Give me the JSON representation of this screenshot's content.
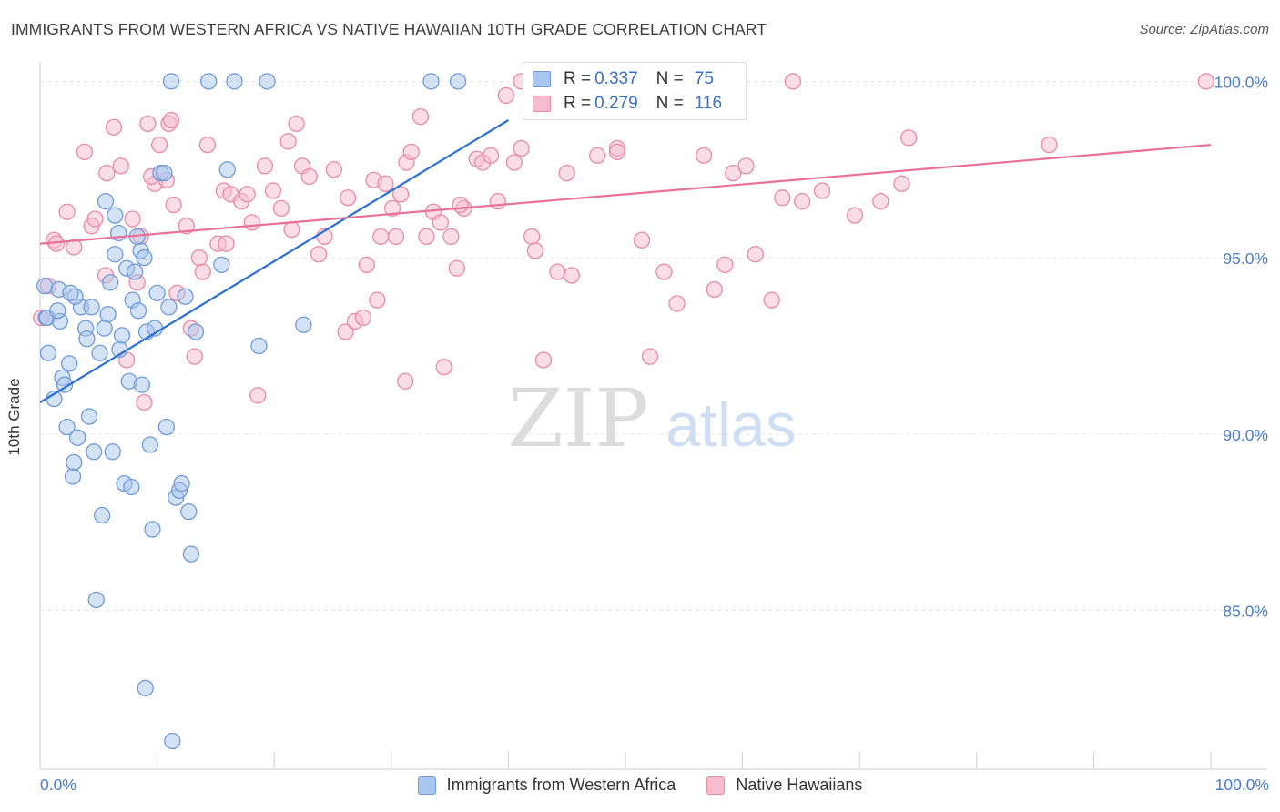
{
  "header": {
    "title": "IMMIGRANTS FROM WESTERN AFRICA VS NATIVE HAWAIIAN 10TH GRADE CORRELATION CHART",
    "source": "Source: ZipAtlas.com"
  },
  "watermark": {
    "zip": "ZIP",
    "atlas": "atlas"
  },
  "colors": {
    "blue_fill": "#a9c6ee",
    "blue_stroke": "#6f9bd9",
    "blue_line": "#2a6fd1",
    "pink_fill": "#f5bccd",
    "pink_stroke": "#e98aa6",
    "pink_line": "#e8709a",
    "value_text": "#3a6fc4"
  },
  "stats_legend": {
    "rows": [
      {
        "r_label": "R =",
        "r_value": "0.337",
        "n_label": "N =",
        "n_value": "75"
      },
      {
        "r_label": "R =",
        "r_value": "0.279",
        "n_label": "N =",
        "n_value": "116"
      }
    ]
  },
  "chart_data": {
    "type": "scatter",
    "title": "IMMIGRANTS FROM WESTERN AFRICA VS NATIVE HAWAIIAN 10TH GRADE CORRELATION CHART",
    "xlabel": "",
    "ylabel": "10th Grade",
    "xlim": [
      0,
      100
    ],
    "ylim": [
      80.5,
      100.5
    ],
    "x_tick_labels": [
      "0.0%",
      "100.0%"
    ],
    "y_ticks": [
      85,
      90,
      95,
      100
    ],
    "y_tick_labels": [
      "85.0%",
      "90.0%",
      "95.0%",
      "100.0%"
    ],
    "grid": true,
    "legend_position": "bottom-center",
    "series": [
      {
        "name": "Immigrants from Western Africa",
        "color": "blue",
        "R": 0.337,
        "N": 75,
        "trend": {
          "x": [
            0,
            40
          ],
          "y": [
            90.9,
            98.9
          ]
        },
        "points": [
          [
            11.2,
            100
          ],
          [
            14.4,
            100
          ],
          [
            16.6,
            100
          ],
          [
            19.4,
            100
          ],
          [
            33.4,
            100
          ],
          [
            35.7,
            100
          ],
          [
            0.4,
            94.2
          ],
          [
            0.5,
            93.3
          ],
          [
            0.6,
            93.3
          ],
          [
            0.7,
            92.3
          ],
          [
            1.2,
            91.0
          ],
          [
            1.6,
            94.1
          ],
          [
            1.7,
            93.2
          ],
          [
            1.9,
            91.6
          ],
          [
            2.1,
            91.4
          ],
          [
            2.3,
            90.2
          ],
          [
            2.5,
            92.0
          ],
          [
            2.8,
            88.8
          ],
          [
            2.9,
            89.2
          ],
          [
            3.2,
            89.9
          ],
          [
            3.5,
            93.6
          ],
          [
            3.9,
            93.0
          ],
          [
            4.2,
            90.5
          ],
          [
            4.4,
            93.6
          ],
          [
            4.6,
            89.5
          ],
          [
            5.1,
            92.3
          ],
          [
            5.3,
            87.7
          ],
          [
            5.5,
            93.0
          ],
          [
            5.8,
            93.4
          ],
          [
            6.0,
            94.3
          ],
          [
            6.2,
            89.5
          ],
          [
            6.4,
            95.1
          ],
          [
            6.7,
            95.7
          ],
          [
            6.8,
            92.4
          ],
          [
            7.0,
            92.8
          ],
          [
            7.2,
            88.6
          ],
          [
            7.4,
            94.7
          ],
          [
            7.6,
            91.5
          ],
          [
            7.8,
            88.5
          ],
          [
            7.9,
            93.8
          ],
          [
            8.1,
            94.6
          ],
          [
            8.4,
            93.5
          ],
          [
            8.6,
            95.2
          ],
          [
            8.7,
            91.4
          ],
          [
            8.9,
            95.0
          ],
          [
            9.1,
            92.9
          ],
          [
            9.4,
            89.7
          ],
          [
            9.6,
            87.3
          ],
          [
            9.8,
            93.0
          ],
          [
            10.0,
            94.0
          ],
          [
            10.3,
            97.4
          ],
          [
            10.8,
            90.2
          ],
          [
            11.0,
            93.6
          ],
          [
            11.6,
            88.2
          ],
          [
            11.9,
            88.4
          ],
          [
            12.1,
            88.6
          ],
          [
            12.7,
            87.8
          ],
          [
            12.9,
            86.6
          ],
          [
            13.3,
            92.9
          ],
          [
            16.0,
            97.5
          ],
          [
            18.7,
            92.5
          ],
          [
            22.5,
            93.1
          ],
          [
            4.8,
            85.3
          ],
          [
            9.0,
            82.8
          ],
          [
            11.3,
            81.3
          ],
          [
            6.4,
            96.2
          ],
          [
            10.6,
            97.4
          ],
          [
            3.0,
            93.9
          ],
          [
            1.5,
            93.5
          ],
          [
            2.6,
            94.0
          ],
          [
            4.0,
            92.7
          ],
          [
            5.6,
            96.6
          ],
          [
            8.3,
            95.6
          ],
          [
            12.4,
            93.9
          ],
          [
            15.5,
            94.8
          ]
        ]
      },
      {
        "name": "Native Hawaiians",
        "color": "pink",
        "R": 0.279,
        "N": 116,
        "trend": {
          "x": [
            0,
            100
          ],
          "y": [
            95.4,
            98.2
          ]
        },
        "points": [
          [
            0.1,
            93.3
          ],
          [
            0.7,
            94.2
          ],
          [
            1.2,
            95.5
          ],
          [
            1.4,
            95.4
          ],
          [
            2.3,
            96.3
          ],
          [
            2.9,
            95.3
          ],
          [
            3.8,
            98.0
          ],
          [
            4.4,
            95.9
          ],
          [
            4.7,
            96.1
          ],
          [
            5.6,
            94.5
          ],
          [
            5.7,
            97.4
          ],
          [
            6.9,
            97.6
          ],
          [
            7.4,
            92.1
          ],
          [
            8.3,
            94.3
          ],
          [
            8.6,
            95.6
          ],
          [
            8.9,
            90.9
          ],
          [
            9.2,
            98.8
          ],
          [
            9.8,
            97.1
          ],
          [
            10.2,
            98.2
          ],
          [
            10.8,
            97.2
          ],
          [
            11.0,
            98.8
          ],
          [
            11.2,
            98.9
          ],
          [
            11.7,
            94.0
          ],
          [
            12.5,
            95.9
          ],
          [
            12.9,
            93.0
          ],
          [
            13.2,
            92.2
          ],
          [
            13.9,
            94.6
          ],
          [
            14.3,
            98.2
          ],
          [
            15.2,
            95.4
          ],
          [
            15.7,
            96.9
          ],
          [
            16.3,
            96.8
          ],
          [
            17.2,
            96.6
          ],
          [
            17.7,
            96.8
          ],
          [
            18.6,
            91.1
          ],
          [
            19.2,
            97.6
          ],
          [
            19.9,
            96.9
          ],
          [
            20.6,
            96.4
          ],
          [
            21.2,
            98.3
          ],
          [
            21.9,
            98.8
          ],
          [
            22.4,
            97.6
          ],
          [
            23.0,
            97.3
          ],
          [
            23.8,
            95.1
          ],
          [
            24.3,
            95.6
          ],
          [
            25.1,
            97.5
          ],
          [
            26.1,
            92.9
          ],
          [
            26.3,
            96.7
          ],
          [
            26.9,
            93.2
          ],
          [
            27.6,
            93.3
          ],
          [
            27.9,
            94.8
          ],
          [
            28.5,
            97.2
          ],
          [
            29.1,
            95.6
          ],
          [
            29.5,
            97.1
          ],
          [
            30.1,
            96.4
          ],
          [
            30.4,
            95.6
          ],
          [
            30.8,
            96.8
          ],
          [
            31.3,
            97.7
          ],
          [
            31.7,
            98.0
          ],
          [
            32.5,
            99.0
          ],
          [
            33.0,
            95.6
          ],
          [
            33.6,
            96.3
          ],
          [
            34.2,
            96.0
          ],
          [
            35.1,
            95.6
          ],
          [
            35.6,
            94.7
          ],
          [
            36.2,
            96.4
          ],
          [
            37.3,
            97.8
          ],
          [
            37.8,
            97.7
          ],
          [
            38.5,
            97.9
          ],
          [
            39.1,
            96.6
          ],
          [
            40.5,
            97.7
          ],
          [
            41.1,
            98.1
          ],
          [
            42.0,
            95.6
          ],
          [
            42.3,
            95.2
          ],
          [
            43.0,
            92.1
          ],
          [
            44.2,
            94.6
          ],
          [
            45.0,
            97.4
          ],
          [
            45.4,
            94.5
          ],
          [
            47.6,
            97.9
          ],
          [
            49.3,
            98.1
          ],
          [
            51.4,
            95.5
          ],
          [
            53.3,
            94.6
          ],
          [
            54.4,
            93.7
          ],
          [
            56.7,
            97.9
          ],
          [
            57.6,
            94.1
          ],
          [
            58.5,
            94.8
          ],
          [
            59.2,
            97.4
          ],
          [
            60.3,
            97.6
          ],
          [
            61.1,
            95.1
          ],
          [
            62.5,
            93.8
          ],
          [
            63.4,
            96.7
          ],
          [
            65.1,
            96.6
          ],
          [
            66.8,
            96.9
          ],
          [
            69.6,
            96.2
          ],
          [
            71.8,
            96.6
          ],
          [
            73.6,
            97.1
          ],
          [
            74.2,
            98.4
          ],
          [
            86.2,
            98.2
          ],
          [
            99.6,
            100
          ],
          [
            41.1,
            100
          ],
          [
            55.8,
            100
          ],
          [
            59.2,
            100
          ],
          [
            64.3,
            100
          ],
          [
            49.3,
            98.0
          ],
          [
            52.1,
            92.2
          ],
          [
            34.5,
            91.9
          ],
          [
            31.2,
            91.5
          ],
          [
            35.9,
            96.5
          ],
          [
            28.8,
            93.8
          ],
          [
            39.8,
            99.6
          ],
          [
            21.5,
            95.8
          ],
          [
            18.1,
            96.0
          ],
          [
            15.9,
            95.4
          ],
          [
            13.6,
            95.0
          ],
          [
            11.4,
            96.5
          ],
          [
            9.5,
            97.3
          ],
          [
            7.9,
            96.1
          ],
          [
            6.3,
            98.7
          ]
        ]
      }
    ]
  }
}
